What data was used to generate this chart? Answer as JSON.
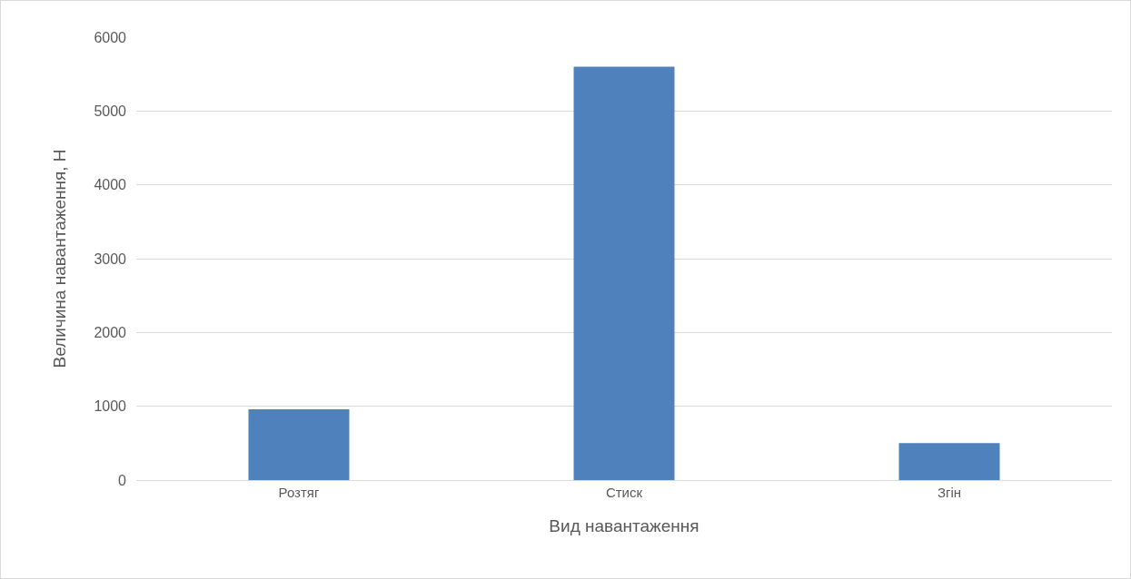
{
  "chart_data": {
    "type": "bar",
    "xlabel": "Вид навантаження",
    "ylabel": "Величина навантаження, Н",
    "categories": [
      "Розтяг",
      "Стиск",
      "Згін"
    ],
    "values": [
      960,
      5600,
      500
    ],
    "color": "#4f81bd",
    "ylim": [
      0,
      6000
    ],
    "yticks": [
      0,
      1000,
      2000,
      3000,
      4000,
      5000,
      6000
    ],
    "grid": "y"
  }
}
